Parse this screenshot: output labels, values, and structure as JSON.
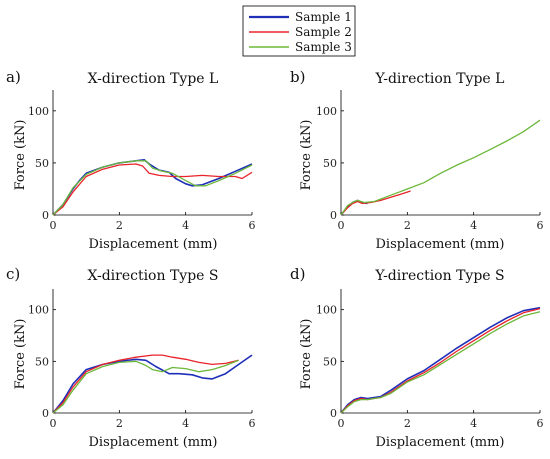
{
  "legend": {
    "entries": [
      {
        "label": "Sample 1",
        "color": "#1f2fb8"
      },
      {
        "label": "Sample 2",
        "color": "#e8232a"
      },
      {
        "label": "Sample 3",
        "color": "#6bb83a"
      }
    ]
  },
  "chart_data": [
    {
      "panel": "a)",
      "type": "line",
      "title": "X-direction Type L",
      "xlabel": "Displacement (mm)",
      "ylabel": "Force (kN)",
      "xlim": [
        0,
        6
      ],
      "ylim": [
        0,
        120
      ],
      "xticks": [
        0,
        2,
        4,
        6
      ],
      "yticks": [
        0,
        50,
        100
      ],
      "series": [
        {
          "name": "Sample 1",
          "x": [
            0,
            0.3,
            0.6,
            0.8,
            1.0,
            1.5,
            2.0,
            2.5,
            2.75,
            2.9,
            3.2,
            3.5,
            3.7,
            4.0,
            4.2,
            4.5,
            5.0,
            5.5,
            6.0
          ],
          "y": [
            0,
            10,
            25,
            33,
            40,
            46,
            50,
            52,
            53,
            49,
            43,
            41,
            35,
            30,
            28,
            29,
            35,
            42,
            49
          ]
        },
        {
          "name": "Sample 2",
          "x": [
            0,
            0.3,
            0.6,
            1.0,
            1.5,
            2.0,
            2.5,
            2.7,
            2.9,
            3.2,
            3.6,
            4.0,
            4.5,
            5.0,
            5.5,
            5.7,
            6.0
          ],
          "y": [
            0,
            8,
            22,
            37,
            44,
            48,
            49,
            47,
            40,
            38,
            37,
            37,
            38,
            37,
            37,
            35,
            41
          ]
        },
        {
          "name": "Sample 3",
          "x": [
            0,
            0.3,
            0.6,
            1.0,
            1.5,
            2.0,
            2.5,
            2.8,
            3.0,
            3.3,
            3.6,
            4.0,
            4.3,
            4.6,
            5.0,
            5.5,
            6.0
          ],
          "y": [
            0,
            10,
            26,
            39,
            46,
            50,
            52,
            52,
            45,
            42,
            40,
            33,
            28,
            28,
            33,
            40,
            48
          ]
        }
      ]
    },
    {
      "panel": "b)",
      "type": "line",
      "title": "Y-direction Type L",
      "xlabel": "Displacement (mm)",
      "ylabel": "Force (kN)",
      "xlim": [
        0,
        6
      ],
      "ylim": [
        0,
        120
      ],
      "xticks": [
        0,
        2,
        4,
        6
      ],
      "yticks": [
        0,
        50,
        100
      ],
      "series": [
        {
          "name": "Sample 1",
          "x": [
            0,
            0.2,
            0.35,
            0.5,
            0.6,
            0.8
          ],
          "y": [
            0,
            8,
            12,
            14,
            12,
            11
          ]
        },
        {
          "name": "Sample 2",
          "x": [
            0,
            0.2,
            0.35,
            0.5,
            0.65,
            0.9,
            1.2,
            1.5,
            1.8,
            2.1
          ],
          "y": [
            0,
            7,
            11,
            13,
            11,
            12,
            14,
            17,
            20,
            23
          ]
        },
        {
          "name": "Sample 3",
          "x": [
            0,
            0.2,
            0.4,
            0.5,
            0.7,
            1.0,
            1.5,
            2.0,
            2.5,
            3.0,
            3.5,
            4.0,
            4.5,
            5.0,
            5.5,
            6.0
          ],
          "y": [
            0,
            9,
            13,
            14,
            12,
            13,
            19,
            25,
            31,
            40,
            48,
            55,
            63,
            71,
            80,
            91
          ]
        }
      ]
    },
    {
      "panel": "c)",
      "type": "line",
      "title": "X-direction Type S",
      "xlabel": "Displacement (mm)",
      "ylabel": "Force (kN)",
      "xlim": [
        0,
        6
      ],
      "ylim": [
        0,
        120
      ],
      "xticks": [
        0,
        2,
        4,
        6
      ],
      "yticks": [
        0,
        50,
        100
      ],
      "series": [
        {
          "name": "Sample 1",
          "x": [
            0,
            0.3,
            0.6,
            1.0,
            1.5,
            2.0,
            2.5,
            2.8,
            3.1,
            3.5,
            3.8,
            4.2,
            4.5,
            4.8,
            5.2,
            5.6,
            6.0
          ],
          "y": [
            0,
            12,
            28,
            42,
            47,
            50,
            52,
            51,
            45,
            38,
            38,
            37,
            34,
            33,
            38,
            47,
            56
          ]
        },
        {
          "name": "Sample 2",
          "x": [
            0,
            0.3,
            0.6,
            1.0,
            1.5,
            2.0,
            2.5,
            3.0,
            3.3,
            3.6,
            4.0,
            4.4,
            4.8,
            5.2,
            5.6
          ],
          "y": [
            0,
            10,
            25,
            40,
            47,
            51,
            54,
            56,
            56,
            54,
            52,
            49,
            47,
            48,
            51
          ]
        },
        {
          "name": "Sample 3",
          "x": [
            0,
            0.3,
            0.6,
            1.0,
            1.5,
            2.0,
            2.5,
            2.8,
            3.0,
            3.3,
            3.6,
            4.0,
            4.4,
            4.8,
            5.2,
            5.6
          ],
          "y": [
            0,
            8,
            22,
            38,
            45,
            49,
            50,
            46,
            42,
            40,
            44,
            43,
            40,
            42,
            46,
            51
          ]
        }
      ]
    },
    {
      "panel": "d)",
      "type": "line",
      "title": "Y-direction Type S",
      "xlabel": "Displacement (mm)",
      "ylabel": "Force (kN)",
      "xlim": [
        0,
        6
      ],
      "ylim": [
        0,
        120
      ],
      "xticks": [
        0,
        2,
        4,
        6
      ],
      "yticks": [
        0,
        50,
        100
      ],
      "series": [
        {
          "name": "Sample 1",
          "x": [
            0,
            0.2,
            0.4,
            0.6,
            0.8,
            1.0,
            1.2,
            1.5,
            2.0,
            2.5,
            3.0,
            3.5,
            4.0,
            4.5,
            5.0,
            5.5,
            6.0
          ],
          "y": [
            0,
            8,
            13,
            15,
            14,
            15,
            16,
            22,
            33,
            41,
            52,
            63,
            73,
            83,
            92,
            99,
            102
          ]
        },
        {
          "name": "Sample 2",
          "x": [
            0,
            0.2,
            0.4,
            0.6,
            0.8,
            1.0,
            1.2,
            1.5,
            2.0,
            2.5,
            3.0,
            3.5,
            4.0,
            4.5,
            5.0,
            5.5,
            6.0
          ],
          "y": [
            0,
            7,
            12,
            14,
            13,
            14,
            15,
            20,
            31,
            39,
            49,
            60,
            70,
            80,
            89,
            97,
            101
          ]
        },
        {
          "name": "Sample 3",
          "x": [
            0,
            0.2,
            0.4,
            0.6,
            0.8,
            1.0,
            1.2,
            1.5,
            2.0,
            2.5,
            3.0,
            3.5,
            4.0,
            4.5,
            5.0,
            5.5,
            6.0
          ],
          "y": [
            0,
            6,
            11,
            13,
            13,
            14,
            15,
            19,
            30,
            37,
            47,
            57,
            67,
            77,
            86,
            94,
            98
          ]
        }
      ]
    }
  ]
}
